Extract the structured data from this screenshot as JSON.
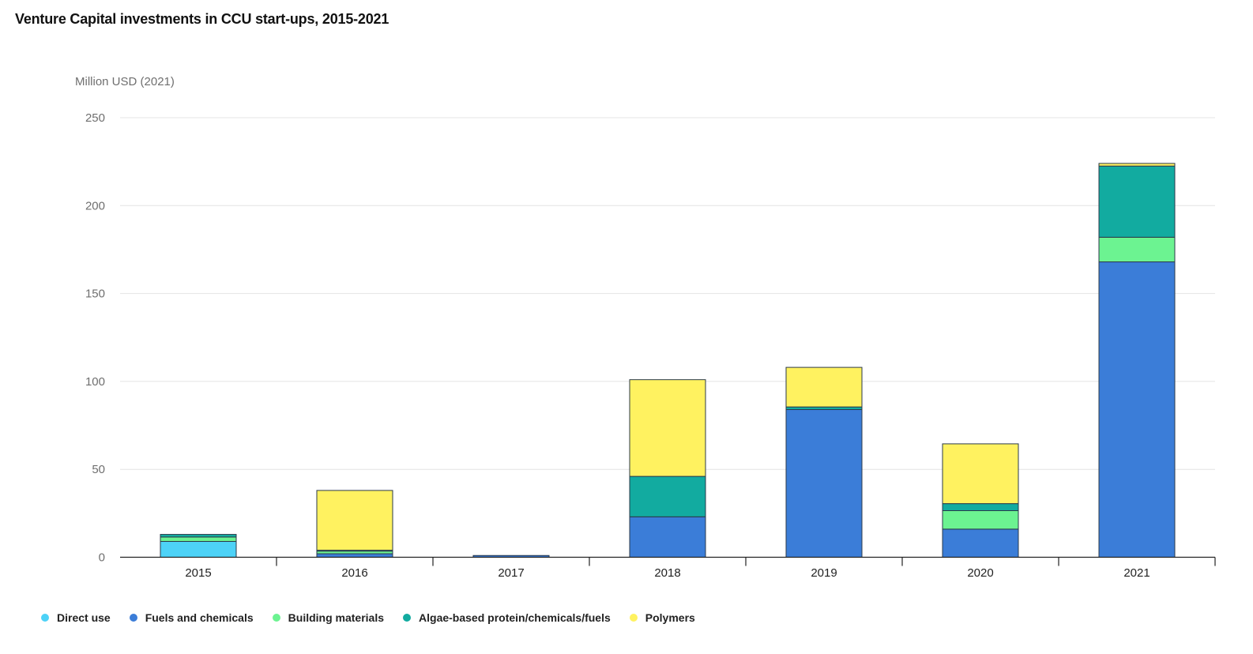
{
  "chart_data": {
    "type": "bar",
    "stacked": true,
    "title": "Venture Capital investments in CCU start-ups, 2015-2021",
    "ylabel": "Million USD (2021)",
    "xlabel": "",
    "ylim": [
      0,
      250
    ],
    "yticks": [
      0,
      50,
      100,
      150,
      200,
      250
    ],
    "grid": true,
    "legend_position": "bottom-left",
    "categories": [
      "2015",
      "2016",
      "2017",
      "2018",
      "2019",
      "2020",
      "2021"
    ],
    "series": [
      {
        "name": "Direct use",
        "color": "#4dd2f7",
        "values": [
          9,
          0,
          0,
          0,
          0,
          0,
          0
        ]
      },
      {
        "name": "Fuels and chemicals",
        "color": "#3b7dd8",
        "values": [
          0,
          2,
          1,
          23,
          84,
          16,
          168
        ]
      },
      {
        "name": "Building materials",
        "color": "#6cf391",
        "values": [
          2.5,
          1.5,
          0,
          0,
          0,
          10.5,
          14
        ]
      },
      {
        "name": "Algae-based protein/chemicals/fuels",
        "color": "#12aba0",
        "values": [
          1.5,
          0.5,
          0,
          23,
          1.5,
          4,
          40.5
        ]
      },
      {
        "name": "Polymers",
        "color": "#fff260",
        "values": [
          0,
          34,
          0,
          55,
          22.5,
          34,
          1.5
        ]
      }
    ]
  }
}
